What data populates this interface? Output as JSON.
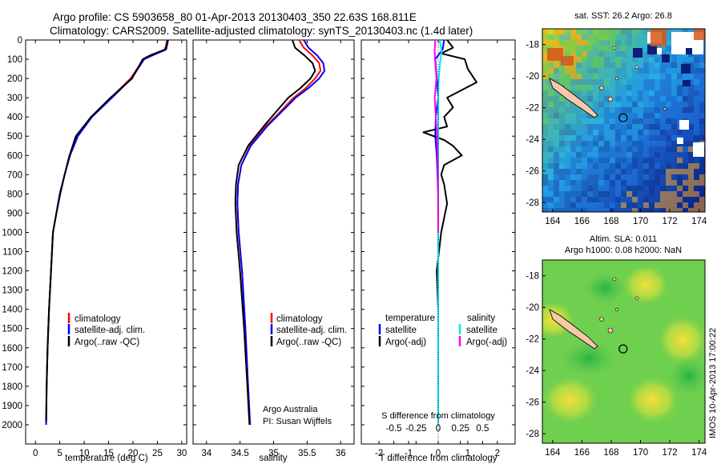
{
  "title": {
    "line1": "Argo profile: CS 5903658_80 01-Apr-2013 20130403_350 22.63S 168.811E",
    "line2": "Climatology: CARS2009. Satellite-adjusted climatology: synTS_20130403.nc (1.4d later)"
  },
  "credit": {
    "text": "IMOS 10-Apr-2013 17:00:22"
  },
  "colors": {
    "climatology": "#ff0000",
    "satellite": "#0000ff",
    "argo": "#000000",
    "sal_satellite": "#00e5ee",
    "sal_argo": "#ff00ff",
    "land": "#f5c9a8"
  },
  "chart_data": [
    {
      "id": "temperature-profile",
      "type": "line",
      "xlabel": "temperature (deg C)",
      "ylabel": "",
      "xlim": [
        -2,
        31
      ],
      "ylim": [
        2100,
        0
      ],
      "xticks": [
        0,
        5,
        10,
        15,
        20,
        25,
        30
      ],
      "yticks": [
        0,
        100,
        200,
        300,
        400,
        500,
        600,
        700,
        800,
        900,
        1000,
        1100,
        1200,
        1300,
        1400,
        1500,
        1600,
        1700,
        1800,
        1900,
        2000
      ],
      "legend": [
        "climatology",
        "satellite-adj. clim.",
        "Argo(..raw -QC)"
      ],
      "legend_position": "lower-center",
      "series": [
        {
          "name": "climatology",
          "color": "#ff0000",
          "x": [
            27.0,
            26.6,
            23.8,
            22.2,
            19.5,
            15.5,
            11.5,
            8.6,
            7.0,
            6.0,
            5.0,
            4.3,
            3.6,
            3.2,
            2.8,
            2.5,
            2.3,
            2.2
          ],
          "y": [
            0,
            50,
            80,
            100,
            200,
            300,
            400,
            500,
            600,
            700,
            800,
            900,
            1000,
            1200,
            1400,
            1600,
            1800,
            2000
          ]
        },
        {
          "name": "satellite-adj. clim.",
          "color": "#0000ff",
          "x": [
            27.2,
            26.8,
            24.0,
            22.3,
            19.7,
            15.7,
            11.6,
            8.7,
            7.1,
            6.0,
            5.0,
            4.3,
            3.6,
            3.2,
            2.8,
            2.5,
            2.3,
            2.2
          ],
          "y": [
            0,
            50,
            80,
            100,
            200,
            300,
            400,
            500,
            600,
            700,
            800,
            900,
            1000,
            1200,
            1400,
            1600,
            1800,
            2000
          ]
        },
        {
          "name": "Argo(..raw -QC)",
          "color": "#000000",
          "x": [
            27.1,
            26.9,
            26.5,
            23.5,
            22.0,
            19.8,
            15.4,
            11.4,
            8.3,
            7.0,
            6.0,
            5.1,
            4.3,
            3.6,
            3.2,
            2.8,
            2.5,
            2.3,
            2.2
          ],
          "y": [
            0,
            30,
            50,
            80,
            100,
            200,
            300,
            400,
            500,
            600,
            700,
            800,
            900,
            1000,
            1200,
            1400,
            1600,
            1800,
            1980
          ]
        }
      ]
    },
    {
      "id": "salinity-profile",
      "type": "line",
      "xlabel": "salinity",
      "xlim": [
        33.8,
        36.2
      ],
      "ylim": [
        2100,
        0
      ],
      "xticks": [
        34,
        34.5,
        35,
        35.5,
        36
      ],
      "legend": [
        "climatology",
        "satellite-adj. clim.",
        "Argo(..raw -QC)"
      ],
      "legend_position": "lower-right",
      "annotation": [
        "Argo Australia",
        "PI: Susan Wijffels"
      ],
      "series": [
        {
          "name": "climatology",
          "color": "#ff0000",
          "x": [
            35.38,
            35.45,
            35.58,
            35.68,
            35.7,
            35.62,
            35.48,
            35.3,
            35.08,
            34.88,
            34.65,
            34.52,
            34.47,
            34.46,
            34.48,
            34.53,
            34.58,
            34.62,
            34.65
          ],
          "y": [
            0,
            40,
            80,
            120,
            160,
            200,
            250,
            300,
            380,
            450,
            550,
            650,
            750,
            850,
            1000,
            1200,
            1500,
            1800,
            2000
          ]
        },
        {
          "name": "satellite-adj. clim.",
          "color": "#0000ff",
          "x": [
            35.45,
            35.52,
            35.65,
            35.74,
            35.76,
            35.68,
            35.52,
            35.33,
            35.1,
            34.9,
            34.66,
            34.52,
            34.47,
            34.46,
            34.48,
            34.53,
            34.58,
            34.62,
            34.65
          ],
          "y": [
            0,
            40,
            80,
            120,
            160,
            200,
            250,
            300,
            380,
            450,
            550,
            650,
            750,
            850,
            1000,
            1200,
            1500,
            1800,
            2000
          ]
        },
        {
          "name": "Argo(..raw -QC)",
          "color": "#000000",
          "x": [
            35.28,
            35.32,
            35.46,
            35.58,
            35.62,
            35.55,
            35.4,
            35.22,
            35.02,
            34.85,
            34.62,
            34.48,
            34.44,
            34.43,
            34.45,
            34.5,
            34.56,
            34.61,
            34.64
          ],
          "y": [
            0,
            40,
            80,
            120,
            160,
            200,
            250,
            300,
            380,
            450,
            550,
            650,
            750,
            850,
            1000,
            1200,
            1500,
            1800,
            2000
          ]
        }
      ]
    },
    {
      "id": "difference-profile",
      "type": "line",
      "xlabel": "T difference from climatology",
      "xlabel_top": "S difference from climatology",
      "xlim": [
        -2.6,
        2.6
      ],
      "ylim": [
        2100,
        0
      ],
      "xticks": [
        -2,
        -1,
        0,
        1,
        2
      ],
      "xticklabels": [
        "-2",
        "-1",
        "0",
        "1",
        "2"
      ],
      "sticks": [
        -0.5,
        -0.25,
        0,
        0.25,
        0.5
      ],
      "sticklabels": [
        "-0.5",
        "-0.25",
        "0",
        "0.25",
        "0.5"
      ],
      "legend_temperature": {
        "title": "temperature",
        "items": [
          "satellite",
          "Argo(-adj)"
        ]
      },
      "legend_salinity": {
        "title": "salinity",
        "items": [
          "satellite",
          "Argo(-adj)"
        ]
      },
      "series": [
        {
          "name": "temperature satellite",
          "color": "#0000ff",
          "x": [
            0.2,
            0.15,
            -0.1,
            -0.05,
            0,
            -0.08,
            -0.1,
            -0.05,
            0,
            0,
            0
          ],
          "y": [
            0,
            50,
            100,
            200,
            300,
            400,
            500,
            600,
            800,
            1200,
            2000
          ]
        },
        {
          "name": "temperature Argo(-adj)",
          "color": "#000000",
          "x": [
            0.3,
            0.5,
            0.1,
            0.9,
            1.0,
            1.3,
            0.8,
            0.3,
            0.5,
            0.2,
            0.3,
            -0.5,
            0.2,
            0.5,
            0.8,
            0.2,
            0.1,
            0.2,
            0.3,
            0.1,
            -0.05,
            0.0,
            0.0,
            0.0
          ],
          "y": [
            0,
            40,
            70,
            100,
            150,
            220,
            260,
            300,
            350,
            400,
            450,
            480,
            520,
            550,
            600,
            650,
            700,
            750,
            850,
            1000,
            1200,
            1400,
            1700,
            2000
          ]
        },
        {
          "name": "salinity satellite",
          "color": "#00e5ee",
          "x": [
            0.05,
            0.12,
            0.06,
            0.02,
            0.0,
            0.0,
            0.0,
            0.0,
            0.0,
            0.0
          ],
          "y": [
            0,
            60,
            120,
            200,
            300,
            500,
            800,
            1200,
            1600,
            2000
          ]
        },
        {
          "name": "salinity Argo(-adj)",
          "color": "#ff00ff",
          "x": [
            -0.1,
            -0.12,
            -0.1,
            -0.06,
            -0.12,
            -0.08,
            -0.04,
            -0.02,
            -0.01,
            0.0,
            0.0
          ],
          "y": [
            0,
            60,
            120,
            200,
            300,
            400,
            500,
            600,
            700,
            900,
            1000
          ]
        }
      ]
    },
    {
      "id": "sst-map",
      "type": "heatmap",
      "title": "sat. SST: 26.2  Argo: 26.8",
      "xlim": [
        163.3,
        174.4
      ],
      "ylim": [
        -28.6,
        -17.0
      ],
      "xticks": [
        164,
        166,
        168,
        170,
        172,
        174
      ],
      "yticks": [
        -18,
        -20,
        -22,
        -24,
        -26,
        -28
      ],
      "argo_position": {
        "lon": 168.811,
        "lat": -22.63
      }
    },
    {
      "id": "sla-map",
      "type": "heatmap",
      "title": "Altim. SLA: 0.011",
      "subtitle": "Argo h1000: 0.08  h2000: NaN",
      "xlim": [
        163.3,
        174.4
      ],
      "ylim": [
        -28.6,
        -17.0
      ],
      "xticks": [
        164,
        166,
        168,
        170,
        172,
        174
      ],
      "yticks": [
        -18,
        -20,
        -22,
        -24,
        -26,
        -28
      ],
      "argo_position": {
        "lon": 168.811,
        "lat": -22.63
      }
    }
  ]
}
